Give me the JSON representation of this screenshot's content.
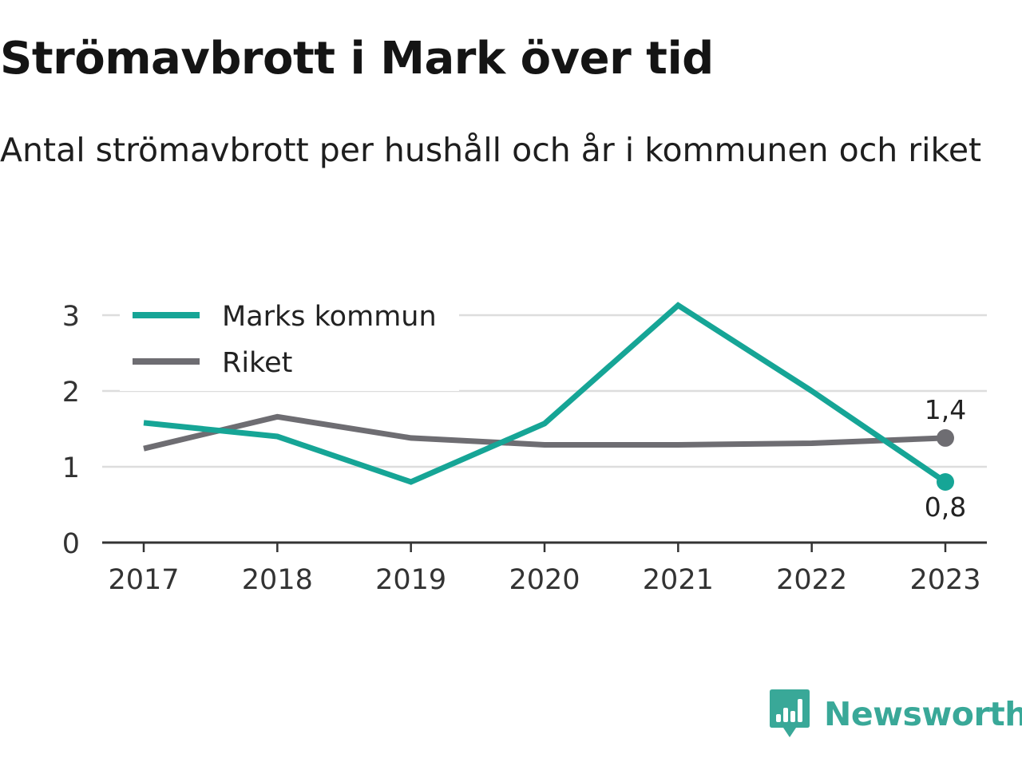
{
  "title": "Strömavbrott i Mark över tid",
  "subtitle": "Antal strömavbrott per hushåll och år i kommunen och riket",
  "brand": {
    "name": "Newsworthy",
    "icon": "newsworthy-bar-chart-speech-bubble-icon",
    "color": "#39a898"
  },
  "chart_data": {
    "type": "line",
    "title": "Strömavbrott i Mark över tid",
    "subtitle": "Antal strömavbrott per hushåll och år i kommunen och riket",
    "x": [
      "2017",
      "2018",
      "2019",
      "2020",
      "2021",
      "2022",
      "2023"
    ],
    "xlabel": "",
    "ylabel": "",
    "ylim": [
      0,
      3
    ],
    "yticks": [
      0,
      1,
      2,
      3
    ],
    "ytick_labels": [
      "0",
      "1",
      "2",
      "3"
    ],
    "grid": "horizontal",
    "legend_position": "top-left",
    "series": [
      {
        "name": "Marks kommun",
        "color": "#16a596",
        "values": [
          1.58,
          1.4,
          0.8,
          1.57,
          3.13,
          2.0,
          0.8
        ],
        "end_label": "0,8",
        "end_label_position": "below"
      },
      {
        "name": "Riket",
        "color": "#6e6d72",
        "values": [
          1.24,
          1.66,
          1.38,
          1.29,
          1.29,
          1.31,
          1.38
        ],
        "end_label": "1,4",
        "end_label_position": "above"
      }
    ]
  }
}
